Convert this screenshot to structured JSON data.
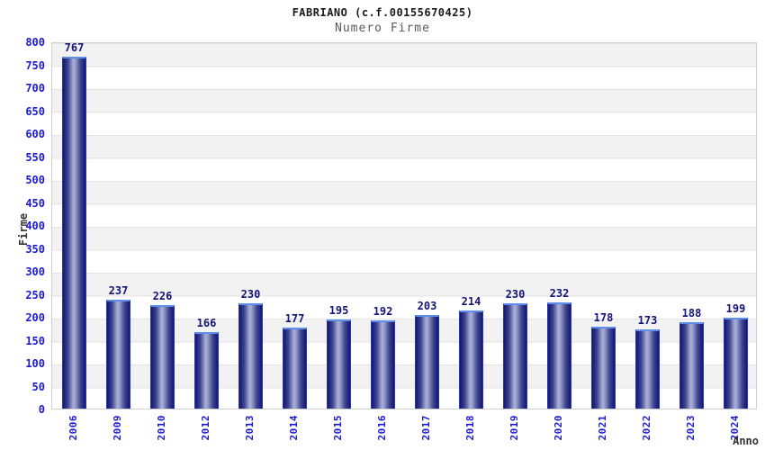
{
  "header": {
    "title": "FABRIANO (c.f.00155670425)",
    "subtitle": "Numero Firme"
  },
  "chart_data": {
    "type": "bar",
    "title": "FABRIANO (c.f.00155670425)",
    "subtitle": "Numero Firme",
    "xlabel": "Anno",
    "ylabel": "Firme",
    "categories": [
      "2006",
      "2009",
      "2010",
      "2012",
      "2013",
      "2014",
      "2015",
      "2016",
      "2017",
      "2018",
      "2019",
      "2020",
      "2021",
      "2022",
      "2023",
      "2024"
    ],
    "values": [
      767,
      237,
      226,
      166,
      230,
      177,
      195,
      192,
      203,
      214,
      230,
      232,
      178,
      173,
      188,
      199
    ],
    "ylim": [
      0,
      800
    ],
    "ytick_step": 50,
    "grid": "horizontal-bands-alternating",
    "legend": "none",
    "colors": {
      "bar_dark": "#12176b",
      "bar_light": "#aab0d6",
      "bar_edge": "#2733cf",
      "bar_cap": "#5e8fe8",
      "tick_label": "#1a1ad0",
      "value_label": "#141478",
      "band_gray": "#f2f2f2",
      "band_white": "#ffffff",
      "plot_border": "#cfcfcf",
      "axis_title": "#333333",
      "title_color": "#1a1a1a",
      "subtitle_color": "#5a5a5a"
    }
  }
}
